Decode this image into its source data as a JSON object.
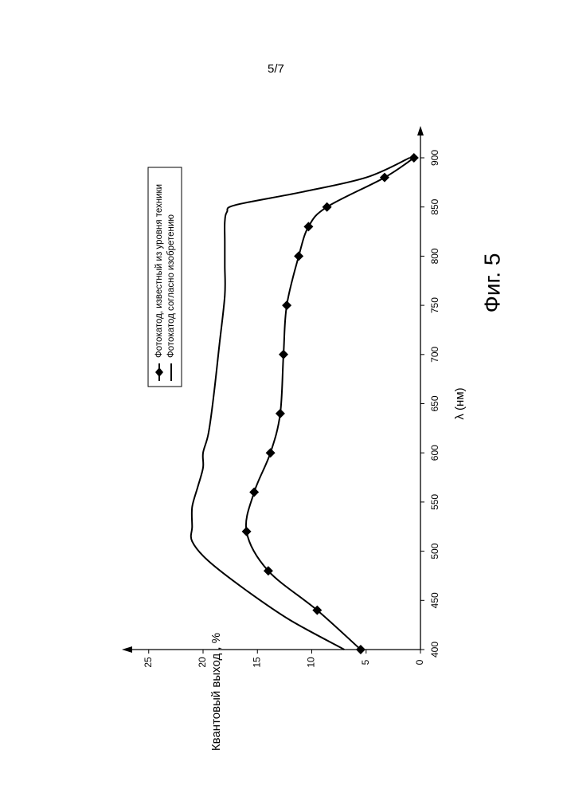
{
  "page_number": "5/7",
  "figure_caption": "Фиг. 5",
  "chart_data": {
    "type": "line",
    "title": "",
    "xlabel": "λ (нм)",
    "ylabel": "Квантовый выход , %",
    "xlim": [
      400,
      900
    ],
    "ylim": [
      0,
      25
    ],
    "x_ticks": [
      "400",
      "450",
      "500",
      "550",
      "600",
      "650",
      "700",
      "750",
      "800",
      "850",
      "900"
    ],
    "y_ticks": [
      "0",
      "5",
      "10",
      "15",
      "20",
      "25"
    ],
    "grid": false,
    "legend_position": "top-left (rotated page)",
    "orientation": "rotated 90° counter-clockwise",
    "series": [
      {
        "name": "Фотокатод, известный из уровня техники",
        "marker": "diamond",
        "x": [
          400,
          440,
          480,
          520,
          560,
          600,
          640,
          700,
          750,
          800,
          830,
          850,
          880,
          900
        ],
        "y": [
          5.5,
          9.5,
          14.0,
          16.0,
          15.3,
          13.8,
          12.9,
          12.6,
          12.3,
          11.2,
          10.3,
          8.6,
          3.3,
          0.6
        ]
      },
      {
        "name": "Фотокатод согласно изобретению",
        "marker": "none",
        "x": [
          400,
          430,
          460,
          490,
          510,
          525,
          545,
          565,
          585,
          600,
          620,
          660,
          710,
          760,
          790,
          815,
          835,
          845,
          852,
          865,
          880,
          900
        ],
        "y": [
          7.0,
          12.0,
          16.0,
          19.5,
          21.0,
          21.0,
          21.0,
          20.5,
          20.0,
          20.0,
          19.5,
          19.0,
          18.5,
          18.0,
          18.0,
          18.0,
          18.0,
          17.8,
          17.0,
          11.0,
          5.0,
          1.0
        ]
      }
    ]
  }
}
